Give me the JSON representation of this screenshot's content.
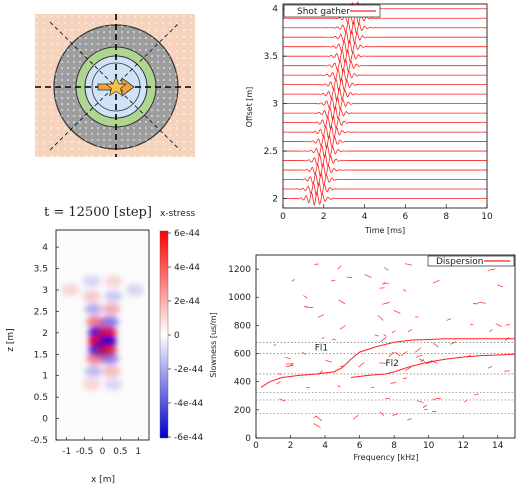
{
  "schematic": {
    "background_color": "#f5d3bd",
    "outer_ring_color": "#9e9e9e",
    "middle_ring_color": "#aed692",
    "inner_disk_color": "#cfe3f7",
    "source_color": "#f5c242",
    "icons": [
      "star-icon",
      "arrow-icon"
    ]
  },
  "chart_data": [
    {
      "id": "shot_gather",
      "type": "line",
      "title": "",
      "legend": [
        "Shot gather"
      ],
      "legend_placement": "top-left",
      "xlabel": "Time [ms]",
      "ylabel": "Offset [m]",
      "xlim": [
        0,
        10
      ],
      "ylim": [
        1.9,
        4.05
      ],
      "x_ticks": [
        "0",
        "2",
        "4",
        "6",
        "8",
        "10"
      ],
      "y_ticks": [
        "2",
        "2.5",
        "3",
        "3.5",
        "4"
      ],
      "series_color": "#ff2020",
      "trace_offsets": [
        2.0,
        2.1,
        2.2,
        2.3,
        2.4,
        2.5,
        2.6,
        2.7,
        2.8,
        2.9,
        3.0,
        3.1,
        3.2,
        3.3,
        3.4,
        3.5,
        3.6,
        3.7,
        3.8,
        3.9,
        4.0
      ],
      "arrival_time_ms": [
        1.6,
        1.7,
        1.8,
        1.9,
        2.0,
        2.1,
        2.2,
        2.3,
        2.4,
        2.5,
        2.6,
        2.7,
        2.8,
        2.9,
        3.0,
        3.1,
        3.2,
        3.3,
        3.4,
        3.5,
        3.6
      ]
    },
    {
      "id": "snapshot",
      "type": "heatmap",
      "title": "t = 12500 [step]",
      "colorbar_label": "x-stress",
      "xlabel": "x [m]",
      "ylabel": "z [m]",
      "xlim": [
        -1.3,
        1.3
      ],
      "ylim": [
        -0.5,
        4.4
      ],
      "x_ticks": [
        "-1",
        "-0.5",
        "0",
        "0.5",
        "1"
      ],
      "y_ticks": [
        "-0.5",
        "0",
        "0.5",
        "1",
        "1.5",
        "2",
        "2.5",
        "3",
        "3.5",
        "4"
      ],
      "colorbar_ticks": [
        "6e-44",
        "4e-44",
        "2e-44",
        "0",
        "-2e-44",
        "-4e-44",
        "-6e-44"
      ],
      "color_positive": "#e00000",
      "color_negative": "#0000d0",
      "lobes": [
        {
          "x": -0.15,
          "z": 2.0,
          "sign": -1,
          "strength": 0.9
        },
        {
          "x": 0.15,
          "z": 2.0,
          "sign": 1,
          "strength": 0.9
        },
        {
          "x": -0.15,
          "z": 1.8,
          "sign": 1,
          "strength": 1.0
        },
        {
          "x": 0.15,
          "z": 1.8,
          "sign": -1,
          "strength": 1.0
        },
        {
          "x": -0.15,
          "z": 1.6,
          "sign": -1,
          "strength": 0.8
        },
        {
          "x": 0.15,
          "z": 1.6,
          "sign": 1,
          "strength": 0.8
        },
        {
          "x": -0.2,
          "z": 2.25,
          "sign": 1,
          "strength": 0.5
        },
        {
          "x": 0.2,
          "z": 2.25,
          "sign": -1,
          "strength": 0.5
        },
        {
          "x": -0.2,
          "z": 1.4,
          "sign": 1,
          "strength": 0.45
        },
        {
          "x": 0.2,
          "z": 1.4,
          "sign": -1,
          "strength": 0.45
        },
        {
          "x": -0.25,
          "z": 2.55,
          "sign": -1,
          "strength": 0.3
        },
        {
          "x": 0.25,
          "z": 2.55,
          "sign": 1,
          "strength": 0.3
        },
        {
          "x": -0.25,
          "z": 1.1,
          "sign": -1,
          "strength": 0.25
        },
        {
          "x": 0.25,
          "z": 1.1,
          "sign": 1,
          "strength": 0.25
        },
        {
          "x": -0.3,
          "z": 2.85,
          "sign": 1,
          "strength": 0.2
        },
        {
          "x": 0.3,
          "z": 2.85,
          "sign": -1,
          "strength": 0.2
        },
        {
          "x": -0.3,
          "z": 3.2,
          "sign": -1,
          "strength": 0.15
        },
        {
          "x": 0.3,
          "z": 3.2,
          "sign": 1,
          "strength": 0.15
        },
        {
          "x": -0.3,
          "z": 0.8,
          "sign": 1,
          "strength": 0.15
        },
        {
          "x": 0.3,
          "z": 0.8,
          "sign": -1,
          "strength": 0.15
        },
        {
          "x": -0.9,
          "z": 3.0,
          "sign": 1,
          "strength": 0.15
        },
        {
          "x": 0.9,
          "z": 3.0,
          "sign": -1,
          "strength": 0.15
        }
      ]
    },
    {
      "id": "dispersion",
      "type": "scatter",
      "title": "",
      "legend": [
        "Dispersion"
      ],
      "legend_placement": "top-right",
      "xlabel": "Frequency [kHz]",
      "ylabel": "Slowness [us/m]",
      "xlim": [
        0,
        15
      ],
      "ylim": [
        0,
        1300
      ],
      "x_ticks": [
        "0",
        "2",
        "4",
        "6",
        "8",
        "10",
        "12",
        "14"
      ],
      "y_ticks": [
        "0",
        "200",
        "400",
        "600",
        "800",
        "1000",
        "1200"
      ],
      "series_color": "#ff2020",
      "reference_slowness": [
        680,
        600,
        455,
        325,
        270,
        175
      ],
      "annotations": [
        {
          "text": "Fl1",
          "x": 3.4,
          "y": 620
        },
        {
          "text": "Fl2",
          "x": 7.5,
          "y": 510
        }
      ],
      "mode_fl1": {
        "x": [
          0.3,
          0.8,
          1.5,
          2.5,
          3.5,
          4.5,
          5.0,
          5.5,
          6.0,
          7.0,
          8.0,
          9.0,
          10.0,
          11.0,
          12.0,
          13.0,
          14.0,
          15.0
        ],
        "y": [
          360,
          400,
          430,
          445,
          455,
          470,
          500,
          560,
          610,
          650,
          680,
          695,
          700,
          705,
          705,
          705,
          705,
          705
        ]
      },
      "mode_fl2": {
        "x": [
          5.5,
          6.5,
          7.5,
          8.0,
          8.5,
          9.0,
          10.0,
          11.0,
          12.0,
          13.0,
          14.0,
          15.0
        ],
        "y": [
          430,
          445,
          455,
          470,
          490,
          510,
          540,
          560,
          575,
          585,
          590,
          595
        ]
      }
    }
  ]
}
